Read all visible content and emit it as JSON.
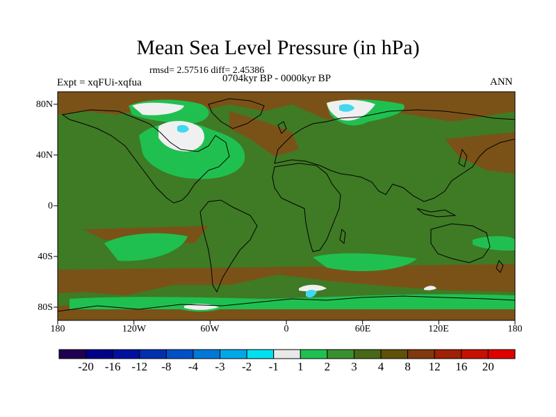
{
  "title": "Mean Sea Level Pressure (in hPa)",
  "stats": "rmsd= 2.57516 diff= 2.45386",
  "experiment": "Expt = xqFUi-xqfua",
  "period": "0704kyr BP - 0000kyr BP",
  "season": "ANN",
  "lat_labels": [
    "80N",
    "40N",
    "0",
    "40S",
    "80S"
  ],
  "lon_labels": [
    "180",
    "120W",
    "60W",
    "0",
    "60E",
    "120E",
    "180"
  ],
  "colorbar": {
    "labels": [
      "-20",
      "-16",
      "-12",
      "-8",
      "-4",
      "-3",
      "-2",
      "-1",
      "1",
      "2",
      "3",
      "4",
      "8",
      "12",
      "16",
      "20"
    ],
    "colors": [
      "#200050",
      "#000088",
      "#0010a0",
      "#0030b0",
      "#0050c8",
      "#0078d8",
      "#00a8e8",
      "#00e0f0",
      "#e8e8e8",
      "#20c050",
      "#389030",
      "#486818",
      "#605008",
      "#803810",
      "#a02008",
      "#c81000",
      "#e00000"
    ]
  },
  "map_colors": {
    "background": "#3f7a25",
    "light_green": "#20c050",
    "brown": "#7a5218",
    "white": "#f0f0f0",
    "cyan": "#40d8f0",
    "coast": "#000000"
  }
}
